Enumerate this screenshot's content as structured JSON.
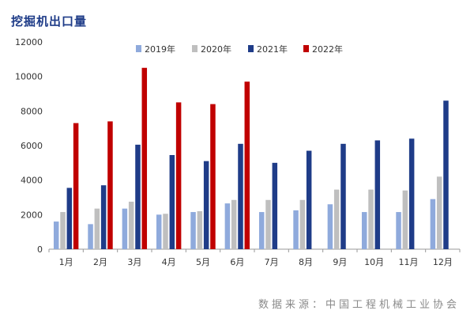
{
  "title": "挖掘机出口量",
  "source": "数据来源：中国工程机械工业协会",
  "chart_data": {
    "type": "bar",
    "categories": [
      "1月",
      "2月",
      "3月",
      "4月",
      "5月",
      "6月",
      "7月",
      "8月",
      "9月",
      "10月",
      "11月",
      "12月"
    ],
    "series": [
      {
        "name": "2019年",
        "color": "#8faadc",
        "values": [
          1600,
          1450,
          2350,
          2000,
          2150,
          2650,
          2150,
          2250,
          2600,
          2150,
          2150,
          2900
        ]
      },
      {
        "name": "2020年",
        "color": "#bfbfbf",
        "values": [
          2150,
          2350,
          2750,
          2050,
          2200,
          2850,
          2850,
          2850,
          3450,
          3450,
          3400,
          4200
        ]
      },
      {
        "name": "2021年",
        "color": "#1f3c88",
        "values": [
          3550,
          3700,
          6050,
          5450,
          5100,
          6100,
          5000,
          5700,
          6100,
          6300,
          6400,
          8600
        ]
      },
      {
        "name": "2022年",
        "color": "#c00000",
        "values": [
          7300,
          7400,
          10500,
          8500,
          8400,
          9700,
          null,
          null,
          null,
          null,
          null,
          null
        ]
      }
    ],
    "ylim": [
      0,
      12000
    ],
    "yticks": [
      0,
      2000,
      4000,
      6000,
      8000,
      10000,
      12000
    ],
    "legend": "top-center",
    "grid": false
  }
}
